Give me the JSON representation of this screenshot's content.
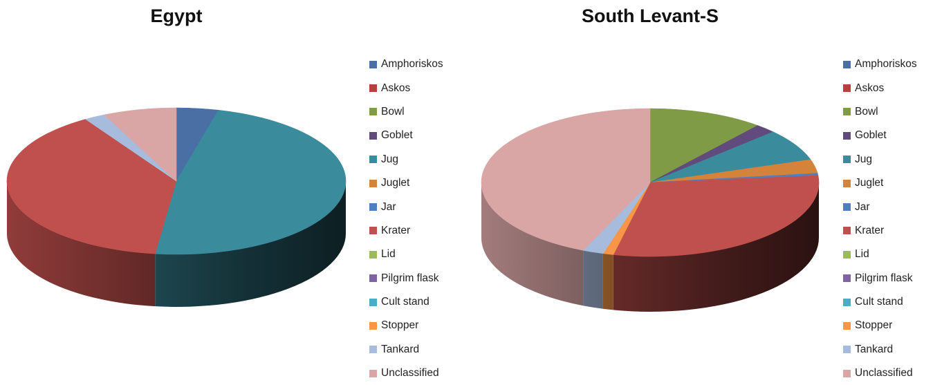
{
  "chart_data": [
    {
      "type": "pie",
      "title": "Egypt",
      "legend_position": "right",
      "categories": [
        "Amphoriskos",
        "Askos",
        "Bowl",
        "Goblet",
        "Jug",
        "Juglet",
        "Jar",
        "Krater",
        "Lid",
        "Pilgrim flask",
        "Cult stand",
        "Stopper",
        "Tankard",
        "Unclassified"
      ],
      "values": [
        4,
        0,
        0,
        0,
        48,
        0,
        0,
        39,
        0,
        0,
        0,
        0,
        2,
        7
      ],
      "colors": [
        "#4a6fa5",
        "#b5403d",
        "#7f9b45",
        "#614b7c",
        "#3a8c9d",
        "#d4843a",
        "#4f7fbf",
        "#c0504d",
        "#9bbb59",
        "#8064a2",
        "#4bacc6",
        "#f79646",
        "#a7bcdc",
        "#d9a5a5"
      ]
    },
    {
      "type": "pie",
      "title": "South Levant-S",
      "legend_position": "right",
      "categories": [
        "Amphoriskos",
        "Askos",
        "Bowl",
        "Goblet",
        "Jug",
        "Juglet",
        "Jar",
        "Krater",
        "Lid",
        "Pilgrim flask",
        "Cult stand",
        "Stopper",
        "Tankard",
        "Unclassified"
      ],
      "values": [
        0,
        0,
        11,
        2,
        7,
        3,
        0.5,
        30,
        0,
        0,
        0,
        1,
        2,
        43.5
      ],
      "colors": [
        "#4a6fa5",
        "#b5403d",
        "#7f9b45",
        "#614b7c",
        "#3a8c9d",
        "#d4843a",
        "#4f7fbf",
        "#c0504d",
        "#9bbb59",
        "#8064a2",
        "#4bacc6",
        "#f79646",
        "#a7bcdc",
        "#d9a5a5"
      ]
    }
  ]
}
